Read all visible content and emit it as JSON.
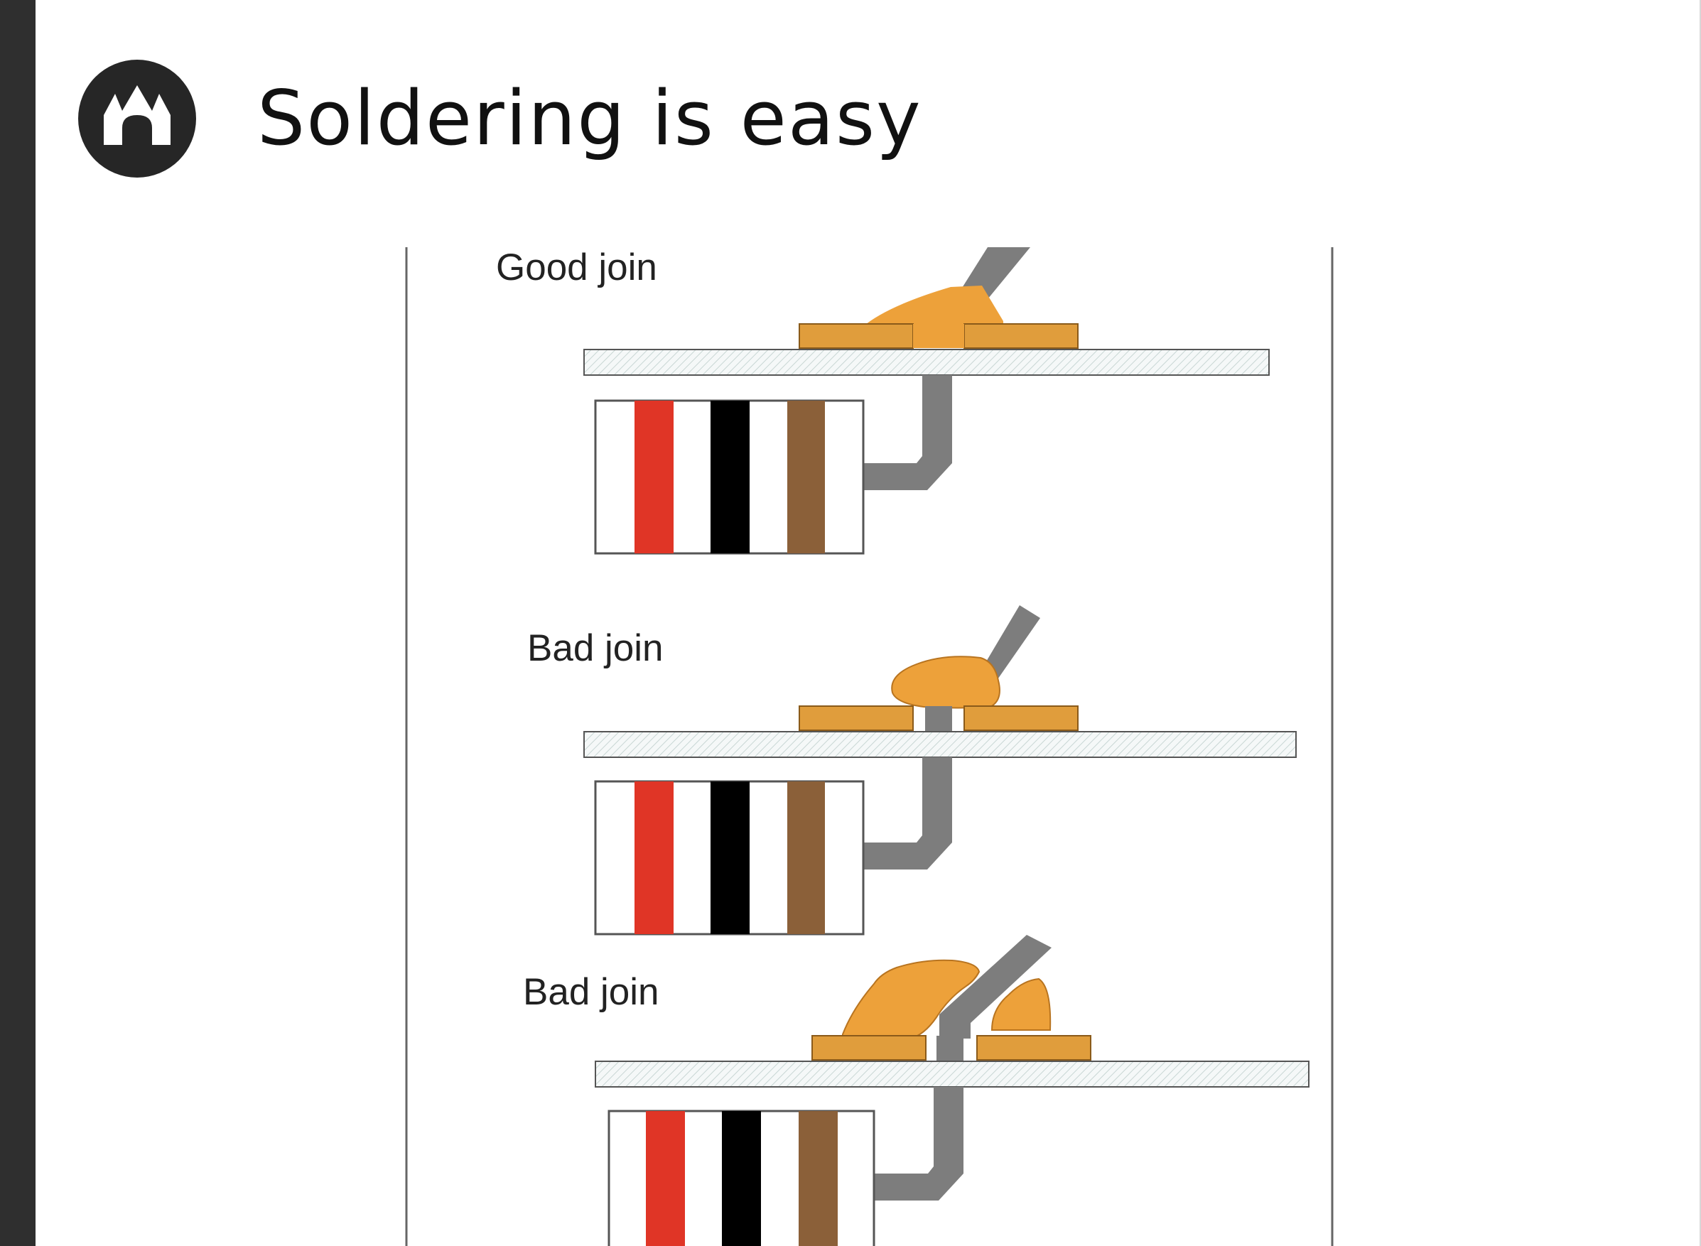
{
  "slide": {
    "title": "Soldering is easy",
    "logo_icon": "castle-gate-icon"
  },
  "diagram": {
    "joins": [
      {
        "label": "Good join"
      },
      {
        "label": "Bad join"
      },
      {
        "label": "Bad join"
      }
    ],
    "resistor_band_colors": [
      "#e03526",
      "#000000",
      "#8b6039"
    ],
    "solder_color": "#eda13a",
    "pad_color": "#e09d3c",
    "lead_color": "#7d7d7d"
  }
}
